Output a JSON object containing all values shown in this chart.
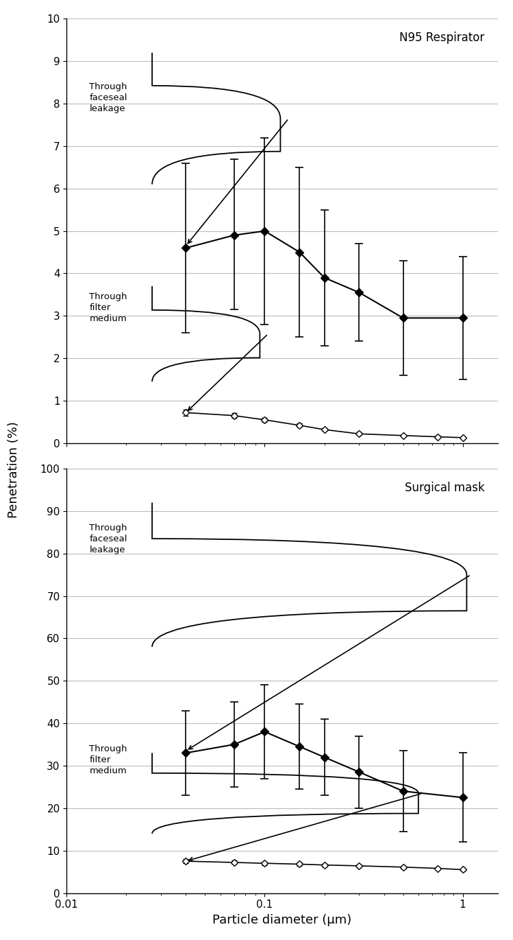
{
  "n95": {
    "title": "N95 Respirator",
    "ylim": [
      0,
      10
    ],
    "yticks": [
      0,
      1,
      2,
      3,
      4,
      5,
      6,
      7,
      8,
      9,
      10
    ],
    "faceseal": {
      "x": [
        0.04,
        0.07,
        0.1,
        0.15,
        0.2,
        0.3,
        0.5,
        1.0
      ],
      "y": [
        4.6,
        4.9,
        5.0,
        4.5,
        3.9,
        3.55,
        2.95,
        2.95
      ],
      "yerr_upper": [
        2.0,
        1.8,
        2.2,
        2.0,
        1.6,
        1.15,
        1.35,
        1.45
      ],
      "yerr_lower": [
        2.0,
        1.75,
        2.2,
        2.0,
        1.6,
        1.15,
        1.35,
        1.45
      ]
    },
    "filter": {
      "x": [
        0.04,
        0.07,
        0.1,
        0.15,
        0.2,
        0.3,
        0.5,
        0.75,
        1.0
      ],
      "y": [
        0.72,
        0.65,
        0.55,
        0.42,
        0.32,
        0.22,
        0.18,
        0.15,
        0.13
      ],
      "yerr_upper": [
        0.07,
        0.06,
        0.05,
        0.04,
        0.03,
        0.03,
        0.02,
        0.02,
        0.02
      ],
      "yerr_lower": [
        0.07,
        0.06,
        0.05,
        0.04,
        0.03,
        0.03,
        0.02,
        0.02,
        0.02
      ]
    }
  },
  "surgical": {
    "title": "Surgical mask",
    "ylim": [
      0,
      100
    ],
    "yticks": [
      0,
      10,
      20,
      30,
      40,
      50,
      60,
      70,
      80,
      90,
      100
    ],
    "faceseal": {
      "x": [
        0.04,
        0.07,
        0.1,
        0.15,
        0.2,
        0.3,
        0.5,
        1.0
      ],
      "y": [
        33.0,
        35.0,
        38.0,
        34.5,
        32.0,
        28.5,
        24.0,
        22.5
      ],
      "yerr_upper": [
        10.0,
        10.0,
        11.0,
        10.0,
        9.0,
        8.5,
        9.5,
        10.5
      ],
      "yerr_lower": [
        10.0,
        10.0,
        11.0,
        10.0,
        9.0,
        8.5,
        9.5,
        10.5
      ]
    },
    "filter": {
      "x": [
        0.04,
        0.07,
        0.1,
        0.15,
        0.2,
        0.3,
        0.5,
        0.75,
        1.0
      ],
      "y": [
        7.5,
        7.2,
        7.0,
        6.8,
        6.6,
        6.4,
        6.1,
        5.8,
        5.5
      ],
      "yerr_upper": [
        0.5,
        0.4,
        0.4,
        0.4,
        0.3,
        0.3,
        0.3,
        0.3,
        0.3
      ],
      "yerr_lower": [
        0.5,
        0.4,
        0.4,
        0.4,
        0.3,
        0.3,
        0.3,
        0.3,
        0.3
      ]
    }
  },
  "xlabel": "Particle diameter (μm)",
  "ylabel": "Penetration (%)",
  "xlim": [
    0.01,
    1.5
  ],
  "background_color": "#ffffff",
  "line_color": "#000000",
  "grid_color": "#bbbbbb"
}
